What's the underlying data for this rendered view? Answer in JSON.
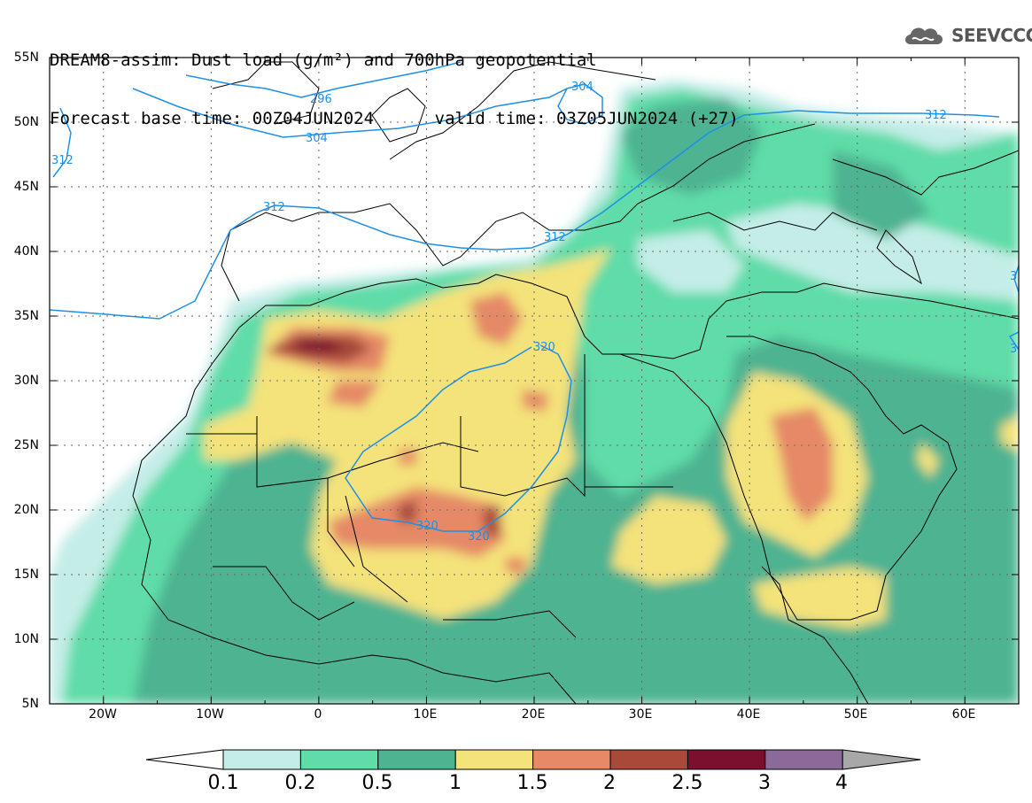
{
  "header": {
    "line1": "DREAM8-assim: Dust load (g/m²) and 700hPa geopotential",
    "line2": "Forecast base time: 00Z04JUN2024      valid time: 03Z05JUN2024 (+27)"
  },
  "logo": {
    "text": "SEEVCCC",
    "icon": "cloud-icon"
  },
  "axes": {
    "lat_labels": [
      "55N",
      "50N",
      "45N",
      "40N",
      "35N",
      "30N",
      "25N",
      "20N",
      "15N",
      "10N",
      "5N"
    ],
    "lon_labels": [
      "20W",
      "10W",
      "0",
      "10E",
      "20E",
      "30E",
      "40E",
      "50E",
      "60E"
    ],
    "lon_range": [
      -25,
      65
    ],
    "lat_range": [
      5,
      55
    ]
  },
  "contours": {
    "labels": [
      "296",
      "304",
      "304",
      "312",
      "312",
      "312",
      "312",
      "320",
      "320",
      "320",
      "3",
      "3"
    ]
  },
  "colorbar": {
    "labels": [
      "0.1",
      "0.2",
      "0.5",
      "1",
      "1.5",
      "2",
      "2.5",
      "3",
      "4"
    ],
    "colors": [
      "#ffffff",
      "#c4ede8",
      "#5fdca8",
      "#4db391",
      "#f4e27a",
      "#e58966",
      "#a8493a",
      "#7a0f2e",
      "#8b6a9a",
      "#a8a8a8"
    ]
  }
}
